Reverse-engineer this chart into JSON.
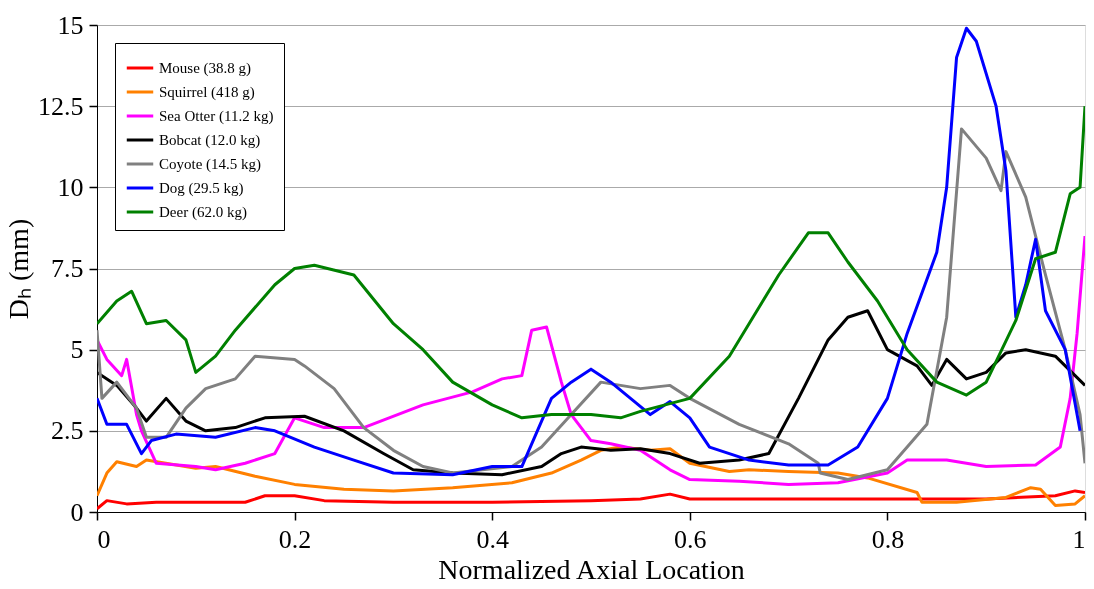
{
  "chart_data": {
    "type": "line",
    "xlabel": "Normalized Axial Location",
    "ylabel": "Dₕ (mm)",
    "xlim": [
      0,
      1
    ],
    "ylim": [
      0,
      15
    ],
    "xticks": [
      0,
      0.2,
      0.4,
      0.6,
      0.8,
      1
    ],
    "yticks": [
      0,
      2.5,
      5,
      7.5,
      10,
      12.5,
      15
    ],
    "grid": "y",
    "legend": "top left",
    "line_style": "solid",
    "marker": "none",
    "series": [
      {
        "name": "Mouse (38.8 g)",
        "color": "#ff0000",
        "x": [
          0,
          0.01,
          0.03,
          0.06,
          0.15,
          0.17,
          0.2,
          0.23,
          0.3,
          0.4,
          0.5,
          0.55,
          0.58,
          0.6,
          0.7,
          0.9,
          0.97,
          0.99,
          1
        ],
        "values": [
          0.1,
          0.35,
          0.25,
          0.3,
          0.3,
          0.5,
          0.5,
          0.35,
          0.3,
          0.3,
          0.35,
          0.4,
          0.55,
          0.4,
          0.4,
          0.4,
          0.5,
          0.65,
          0.6
        ]
      },
      {
        "name": "Squirrel (418 g)",
        "color": "#ff8000",
        "x": [
          0,
          0.01,
          0.02,
          0.04,
          0.05,
          0.1,
          0.12,
          0.16,
          0.2,
          0.25,
          0.3,
          0.36,
          0.42,
          0.46,
          0.49,
          0.51,
          0.53,
          0.56,
          0.58,
          0.6,
          0.64,
          0.66,
          0.7,
          0.75,
          0.78,
          0.83,
          0.835,
          0.87,
          0.92,
          0.945,
          0.955,
          0.97,
          0.99,
          1
        ],
        "values": [
          0.5,
          1.2,
          1.55,
          1.4,
          1.6,
          1.35,
          1.4,
          1.1,
          0.85,
          0.7,
          0.65,
          0.75,
          0.9,
          1.2,
          1.6,
          1.9,
          2.0,
          1.9,
          1.95,
          1.5,
          1.25,
          1.3,
          1.25,
          1.2,
          1.05,
          0.6,
          0.3,
          0.3,
          0.45,
          0.75,
          0.7,
          0.2,
          0.25,
          0.5
        ]
      },
      {
        "name": "Sea Otter (11.2 kg)",
        "color": "#ff00ff",
        "x": [
          0,
          0.01,
          0.025,
          0.03,
          0.04,
          0.045,
          0.06,
          0.1,
          0.12,
          0.15,
          0.18,
          0.2,
          0.23,
          0.27,
          0.33,
          0.38,
          0.41,
          0.43,
          0.44,
          0.455,
          0.47,
          0.48,
          0.5,
          0.52,
          0.55,
          0.58,
          0.6,
          0.65,
          0.7,
          0.75,
          0.8,
          0.82,
          0.86,
          0.9,
          0.95,
          0.975,
          0.985,
          0.992,
          1
        ],
        "values": [
          5.3,
          4.7,
          4.2,
          4.7,
          3.0,
          2.5,
          1.5,
          1.4,
          1.3,
          1.5,
          1.8,
          2.9,
          2.6,
          2.6,
          3.3,
          3.7,
          4.1,
          4.2,
          5.6,
          5.7,
          4.0,
          3.0,
          2.2,
          2.1,
          1.9,
          1.3,
          1.0,
          0.95,
          0.85,
          0.9,
          1.2,
          1.6,
          1.6,
          1.4,
          1.45,
          2.0,
          3.5,
          5.5,
          8.5
        ]
      },
      {
        "name": "Bobcat (12.0 kg)",
        "color": "#000000",
        "x": [
          0,
          0.02,
          0.04,
          0.05,
          0.07,
          0.09,
          0.11,
          0.14,
          0.17,
          0.21,
          0.25,
          0.29,
          0.32,
          0.36,
          0.41,
          0.45,
          0.47,
          0.49,
          0.52,
          0.55,
          0.58,
          0.61,
          0.65,
          0.68,
          0.71,
          0.74,
          0.76,
          0.78,
          0.8,
          0.83,
          0.845,
          0.86,
          0.88,
          0.9,
          0.92,
          0.94,
          0.97,
          0.99,
          1
        ],
        "values": [
          4.3,
          3.9,
          3.2,
          2.8,
          3.5,
          2.8,
          2.5,
          2.6,
          2.9,
          2.95,
          2.5,
          1.8,
          1.3,
          1.2,
          1.15,
          1.4,
          1.8,
          2.0,
          1.9,
          1.95,
          1.8,
          1.5,
          1.6,
          1.8,
          3.5,
          5.3,
          6.0,
          6.2,
          5.0,
          4.5,
          3.9,
          4.7,
          4.1,
          4.3,
          4.9,
          5.0,
          4.8,
          4.2,
          3.9
        ]
      },
      {
        "name": "Coyote (14.5 kg)",
        "color": "#808080",
        "x": [
          0,
          0.005,
          0.02,
          0.04,
          0.05,
          0.07,
          0.09,
          0.11,
          0.14,
          0.16,
          0.2,
          0.21,
          0.24,
          0.27,
          0.3,
          0.33,
          0.36,
          0.42,
          0.45,
          0.48,
          0.51,
          0.55,
          0.58,
          0.6,
          0.65,
          0.7,
          0.73,
          0.732,
          0.76,
          0.8,
          0.84,
          0.86,
          0.875,
          0.9,
          0.915,
          0.92,
          0.94,
          0.96,
          0.98,
          0.995,
          1
        ],
        "values": [
          5.6,
          3.5,
          4.0,
          3.2,
          2.3,
          2.3,
          3.2,
          3.8,
          4.1,
          4.8,
          4.7,
          4.5,
          3.8,
          2.6,
          1.9,
          1.4,
          1.2,
          1.4,
          2.0,
          3.0,
          4.0,
          3.8,
          3.9,
          3.5,
          2.7,
          2.1,
          1.5,
          1.2,
          1.0,
          1.3,
          2.7,
          6.0,
          11.8,
          10.9,
          9.9,
          11.1,
          9.7,
          7.3,
          5.0,
          3.0,
          1.5
        ]
      },
      {
        "name": "Dog (29.5 kg)",
        "color": "#0000ff",
        "x": [
          0,
          0.01,
          0.03,
          0.045,
          0.055,
          0.08,
          0.12,
          0.16,
          0.18,
          0.22,
          0.26,
          0.3,
          0.36,
          0.4,
          0.43,
          0.46,
          0.48,
          0.5,
          0.52,
          0.56,
          0.58,
          0.6,
          0.62,
          0.66,
          0.7,
          0.74,
          0.77,
          0.8,
          0.82,
          0.85,
          0.86,
          0.87,
          0.88,
          0.89,
          0.91,
          0.92,
          0.93,
          0.94,
          0.95,
          0.96,
          0.98,
          0.995
        ],
        "values": [
          3.5,
          2.7,
          2.7,
          1.8,
          2.2,
          2.4,
          2.3,
          2.6,
          2.5,
          2.0,
          1.6,
          1.2,
          1.15,
          1.4,
          1.4,
          3.5,
          4.0,
          4.4,
          4.0,
          3.0,
          3.4,
          2.9,
          2.0,
          1.6,
          1.45,
          1.45,
          2.0,
          3.5,
          5.5,
          8.0,
          10.0,
          14.0,
          14.9,
          14.5,
          12.5,
          10.5,
          6.0,
          7.0,
          8.4,
          6.2,
          5.0,
          2.5
        ]
      },
      {
        "name": "Deer (62.0 kg)",
        "color": "#008000",
        "x": [
          0,
          0.02,
          0.035,
          0.05,
          0.07,
          0.09,
          0.1,
          0.12,
          0.14,
          0.18,
          0.2,
          0.22,
          0.26,
          0.3,
          0.33,
          0.36,
          0.4,
          0.43,
          0.46,
          0.5,
          0.53,
          0.55,
          0.6,
          0.64,
          0.69,
          0.72,
          0.74,
          0.76,
          0.79,
          0.82,
          0.85,
          0.88,
          0.9,
          0.93,
          0.95,
          0.97,
          0.985,
          0.995,
          1
        ],
        "values": [
          5.8,
          6.5,
          6.8,
          5.8,
          5.9,
          5.3,
          4.3,
          4.8,
          5.6,
          7.0,
          7.5,
          7.6,
          7.3,
          5.8,
          5.0,
          4.0,
          3.3,
          2.9,
          3.0,
          3.0,
          2.9,
          3.1,
          3.5,
          4.8,
          7.3,
          8.6,
          8.6,
          7.7,
          6.5,
          5.0,
          4.0,
          3.6,
          4.0,
          5.9,
          7.8,
          8.0,
          9.8,
          10.0,
          12.5
        ]
      }
    ]
  }
}
